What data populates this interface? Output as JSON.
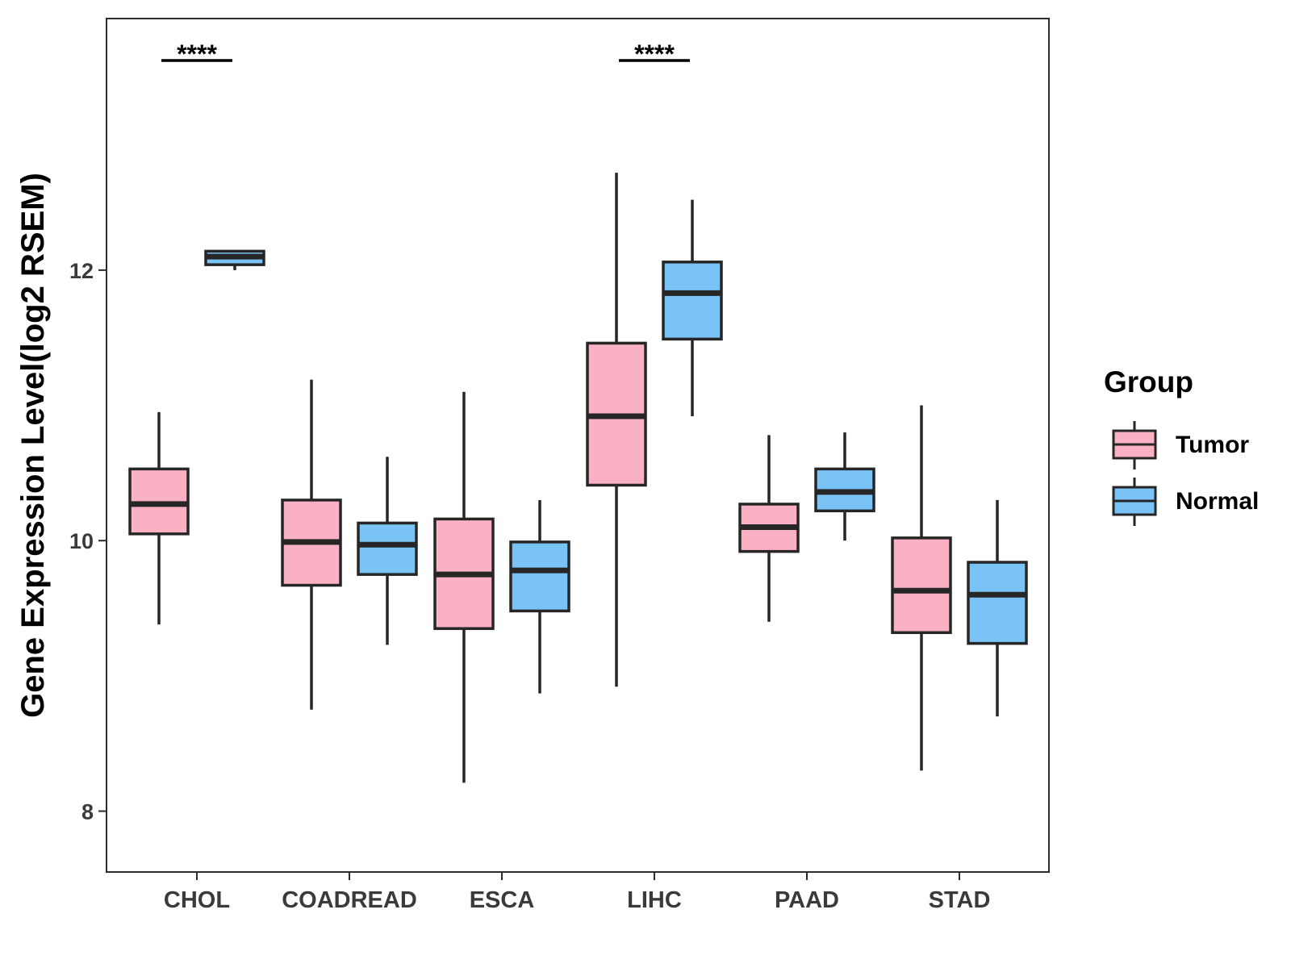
{
  "chart_data": {
    "type": "boxplot",
    "title": "",
    "xlabel": "",
    "ylabel": "Gene Expression Level(log2 RSEM)",
    "ylim": [
      7.55,
      13.86
    ],
    "yticks": [
      8,
      10,
      12
    ],
    "categories": [
      "CHOL",
      "COADREAD",
      "ESCA",
      "LIHC",
      "PAAD",
      "STAD"
    ],
    "legend": {
      "title": "Group",
      "position": "right",
      "entries": [
        {
          "name": "Tumor",
          "color": "#fab1c3"
        },
        {
          "name": "Normal",
          "color": "#7ac3f7"
        }
      ]
    },
    "series": [
      {
        "name": "Tumor",
        "color": "#fab1c3",
        "boxes": [
          {
            "category": "CHOL",
            "min": 9.38,
            "q1": 10.05,
            "median": 10.27,
            "q3": 10.53,
            "max": 10.95
          },
          {
            "category": "COADREAD",
            "min": 8.75,
            "q1": 9.67,
            "median": 9.99,
            "q3": 10.3,
            "max": 11.19
          },
          {
            "category": "ESCA",
            "min": 8.21,
            "q1": 9.35,
            "median": 9.75,
            "q3": 10.16,
            "max": 11.1
          },
          {
            "category": "LIHC",
            "min": 8.92,
            "q1": 10.41,
            "median": 10.92,
            "q3": 11.46,
            "max": 12.72
          },
          {
            "category": "PAAD",
            "min": 9.4,
            "q1": 9.92,
            "median": 10.1,
            "q3": 10.27,
            "max": 10.78
          },
          {
            "category": "STAD",
            "min": 8.3,
            "q1": 9.32,
            "median": 9.63,
            "q3": 10.02,
            "max": 11.0
          }
        ]
      },
      {
        "name": "Normal",
        "color": "#7ac3f7",
        "boxes": [
          {
            "category": "CHOL",
            "min": 12.0,
            "q1": 12.04,
            "median": 12.1,
            "q3": 12.14,
            "max": 12.14
          },
          {
            "category": "COADREAD",
            "min": 9.23,
            "q1": 9.75,
            "median": 9.97,
            "q3": 10.13,
            "max": 10.62
          },
          {
            "category": "ESCA",
            "min": 8.87,
            "q1": 9.48,
            "median": 9.78,
            "q3": 9.99,
            "max": 10.3
          },
          {
            "category": "LIHC",
            "min": 10.92,
            "q1": 11.49,
            "median": 11.83,
            "q3": 12.06,
            "max": 12.52
          },
          {
            "category": "PAAD",
            "min": 10.0,
            "q1": 10.22,
            "median": 10.36,
            "q3": 10.53,
            "max": 10.8
          },
          {
            "category": "STAD",
            "min": 8.7,
            "q1": 9.24,
            "median": 9.6,
            "q3": 9.84,
            "max": 10.3
          }
        ]
      }
    ],
    "annotations": [
      {
        "category": "CHOL",
        "text": "****"
      },
      {
        "category": "LIHC",
        "text": "****"
      }
    ]
  }
}
